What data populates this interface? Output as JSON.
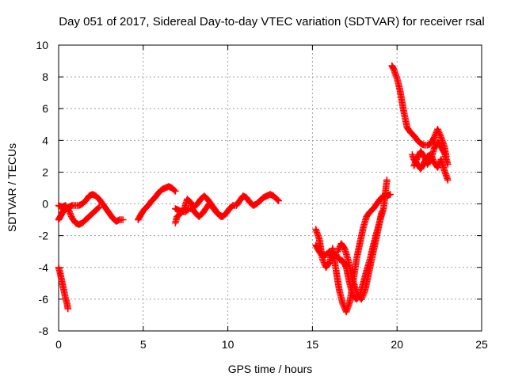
{
  "chart_data": {
    "type": "scatter",
    "title": "Day 051 of 2017, Sidereal Day-to-day VTEC variation (SDTVAR) for receiver rsal",
    "xlabel": "GPS time / hours",
    "ylabel": "SDTVAR / TECUs",
    "xlim": [
      0,
      25
    ],
    "ylim": [
      -8,
      10
    ],
    "xticks": [
      0,
      5,
      10,
      15,
      20,
      25
    ],
    "yticks": [
      -8,
      -6,
      -4,
      -2,
      0,
      2,
      4,
      6,
      8,
      10
    ],
    "grid": true,
    "marker": "+",
    "color": "#ff0000",
    "series": [
      {
        "x": [
          0.0,
          0.1,
          0.2,
          0.3,
          0.4,
          0.5,
          0.6,
          0.8,
          1.0,
          1.2,
          1.4,
          1.6,
          1.8,
          2.0,
          2.2,
          2.4,
          2.6,
          2.8,
          3.0,
          3.2,
          3.4,
          3.6,
          3.8
        ],
        "y": [
          -1.0,
          -0.8,
          -0.6,
          -0.4,
          -0.3,
          -0.3,
          -0.2,
          -0.1,
          -0.1,
          -0.1,
          0.0,
          0.2,
          0.5,
          0.6,
          0.5,
          0.3,
          0.0,
          -0.3,
          -0.6,
          -0.9,
          -1.1,
          -1.0,
          -1.0
        ]
      },
      {
        "x": [
          0.0,
          0.2,
          0.4,
          0.6,
          0.8,
          1.0,
          1.2,
          1.4,
          1.6,
          1.8,
          2.0,
          2.2,
          2.4
        ],
        "y": [
          -0.1,
          -0.2,
          -0.1,
          -0.4,
          -0.9,
          -1.2,
          -1.3,
          -1.2,
          -1.0,
          -0.8,
          -0.6,
          -0.4,
          -0.2
        ]
      },
      {
        "x": [
          0.0,
          0.1,
          0.2,
          0.3,
          0.4,
          0.5,
          0.55
        ],
        "y": [
          -4.0,
          -4.4,
          -4.9,
          -5.4,
          -5.9,
          -6.3,
          -6.6
        ]
      },
      {
        "x": [
          4.7,
          4.9,
          5.1,
          5.3,
          5.5,
          5.7,
          5.9,
          6.1,
          6.3,
          6.5,
          6.7,
          6.9
        ],
        "y": [
          -1.0,
          -0.6,
          -0.3,
          -0.1,
          0.2,
          0.4,
          0.7,
          0.9,
          1.0,
          1.1,
          1.0,
          0.8
        ]
      },
      {
        "x": [
          6.9,
          7.1,
          7.3,
          7.5,
          7.7,
          7.9,
          8.1,
          8.3,
          8.5,
          8.7,
          8.9,
          9.1,
          9.3,
          9.5,
          9.7,
          9.9,
          10.1,
          10.3,
          10.5,
          10.7,
          10.9,
          11.1,
          11.3,
          11.5,
          11.7,
          11.9,
          12.1,
          12.3,
          12.5,
          12.7,
          12.9,
          13.0
        ],
        "y": [
          -0.3,
          -0.4,
          -0.5,
          -0.5,
          -0.3,
          -0.3,
          -0.6,
          -0.8,
          -0.6,
          -0.3,
          0.0,
          -0.2,
          -0.5,
          -0.7,
          -0.8,
          -0.6,
          -0.3,
          -0.1,
          -0.1,
          0.2,
          0.5,
          0.4,
          0.1,
          -0.1,
          0.0,
          0.2,
          0.4,
          0.5,
          0.6,
          0.5,
          0.3,
          0.2
        ]
      },
      {
        "x": [
          6.9,
          7.0,
          7.2,
          7.4,
          7.6,
          7.8,
          8.0,
          8.2,
          8.4,
          8.6,
          8.8,
          9.0,
          9.2,
          9.4,
          9.6
        ],
        "y": [
          -1.2,
          -0.8,
          -0.6,
          -0.4,
          0.3,
          0.1,
          -0.2,
          0.0,
          0.3,
          0.5,
          0.3,
          0.0,
          -0.3,
          -0.6,
          -0.8
        ]
      },
      {
        "x": [
          15.2,
          15.4,
          15.6,
          15.8,
          16.0,
          16.2,
          16.4,
          16.6,
          16.8,
          17.0,
          17.2,
          17.4,
          17.6,
          17.8,
          18.0,
          18.2,
          18.4,
          18.6,
          18.8,
          19.0,
          19.2,
          19.4,
          19.6
        ],
        "y": [
          -1.6,
          -2.2,
          -3.5,
          -4.0,
          -3.7,
          -2.8,
          -4.2,
          -5.5,
          -6.3,
          -6.8,
          -6.2,
          -5.0,
          -3.5,
          -2.5,
          -1.5,
          -0.8,
          -0.5,
          -0.3,
          0.0,
          0.3,
          0.5,
          0.5,
          0.6
        ]
      },
      {
        "x": [
          15.2,
          15.4,
          15.6,
          15.8,
          16.0,
          16.2,
          16.4,
          16.6,
          16.8,
          17.0,
          17.2,
          17.4,
          17.6,
          17.8,
          18.0,
          18.2,
          18.4,
          18.6,
          18.8,
          19.0,
          19.2,
          19.4
        ],
        "y": [
          -2.6,
          -3.0,
          -3.3,
          -3.2,
          -3.0,
          -3.4,
          -3.2,
          -3.5,
          -3.6,
          -4.0,
          -5.0,
          -5.8,
          -6.0,
          -5.8,
          -5.0,
          -4.2,
          -3.5,
          -2.6,
          -1.8,
          -1.0,
          -0.3,
          1.5
        ]
      },
      {
        "x": [
          16.5,
          16.7,
          16.9,
          17.1,
          17.3,
          17.5,
          17.7,
          17.9,
          18.1,
          18.3,
          18.5,
          18.7,
          18.9,
          19.1
        ],
        "y": [
          -3.0,
          -2.5,
          -2.8,
          -3.5,
          -4.5,
          -5.2,
          -5.8,
          -6.0,
          -5.5,
          -4.5,
          -3.5,
          -2.5,
          -1.5,
          -0.5
        ]
      },
      {
        "x": [
          19.7,
          19.8,
          19.9,
          20.0,
          20.1,
          20.2,
          20.3,
          20.4,
          20.5,
          20.6,
          20.8,
          21.0,
          21.2,
          21.4,
          21.6,
          21.8,
          22.0,
          22.2,
          22.4,
          22.6,
          22.8,
          22.9
        ],
        "y": [
          8.7,
          8.5,
          8.2,
          7.9,
          7.5,
          7.0,
          6.4,
          5.8,
          5.3,
          4.8,
          4.5,
          4.3,
          4.0,
          3.8,
          3.7,
          3.7,
          3.8,
          4.2,
          4.7,
          4.2,
          3.6,
          3.0
        ]
      },
      {
        "x": [
          20.9,
          21.0,
          21.2,
          21.4,
          21.6,
          21.8,
          22.0,
          22.2,
          22.4,
          22.6,
          22.8,
          23.0
        ],
        "y": [
          3.1,
          2.8,
          2.5,
          2.2,
          2.6,
          3.0,
          3.1,
          2.6,
          2.3,
          2.8,
          2.1,
          1.5
        ]
      },
      {
        "x": [
          21.0,
          21.2,
          21.4,
          21.6,
          21.8,
          22.0,
          22.2,
          22.4,
          22.6,
          22.8,
          23.0
        ],
        "y": [
          2.4,
          2.9,
          3.3,
          3.0,
          2.5,
          2.8,
          3.5,
          3.9,
          3.6,
          3.2,
          2.5
        ]
      }
    ]
  }
}
